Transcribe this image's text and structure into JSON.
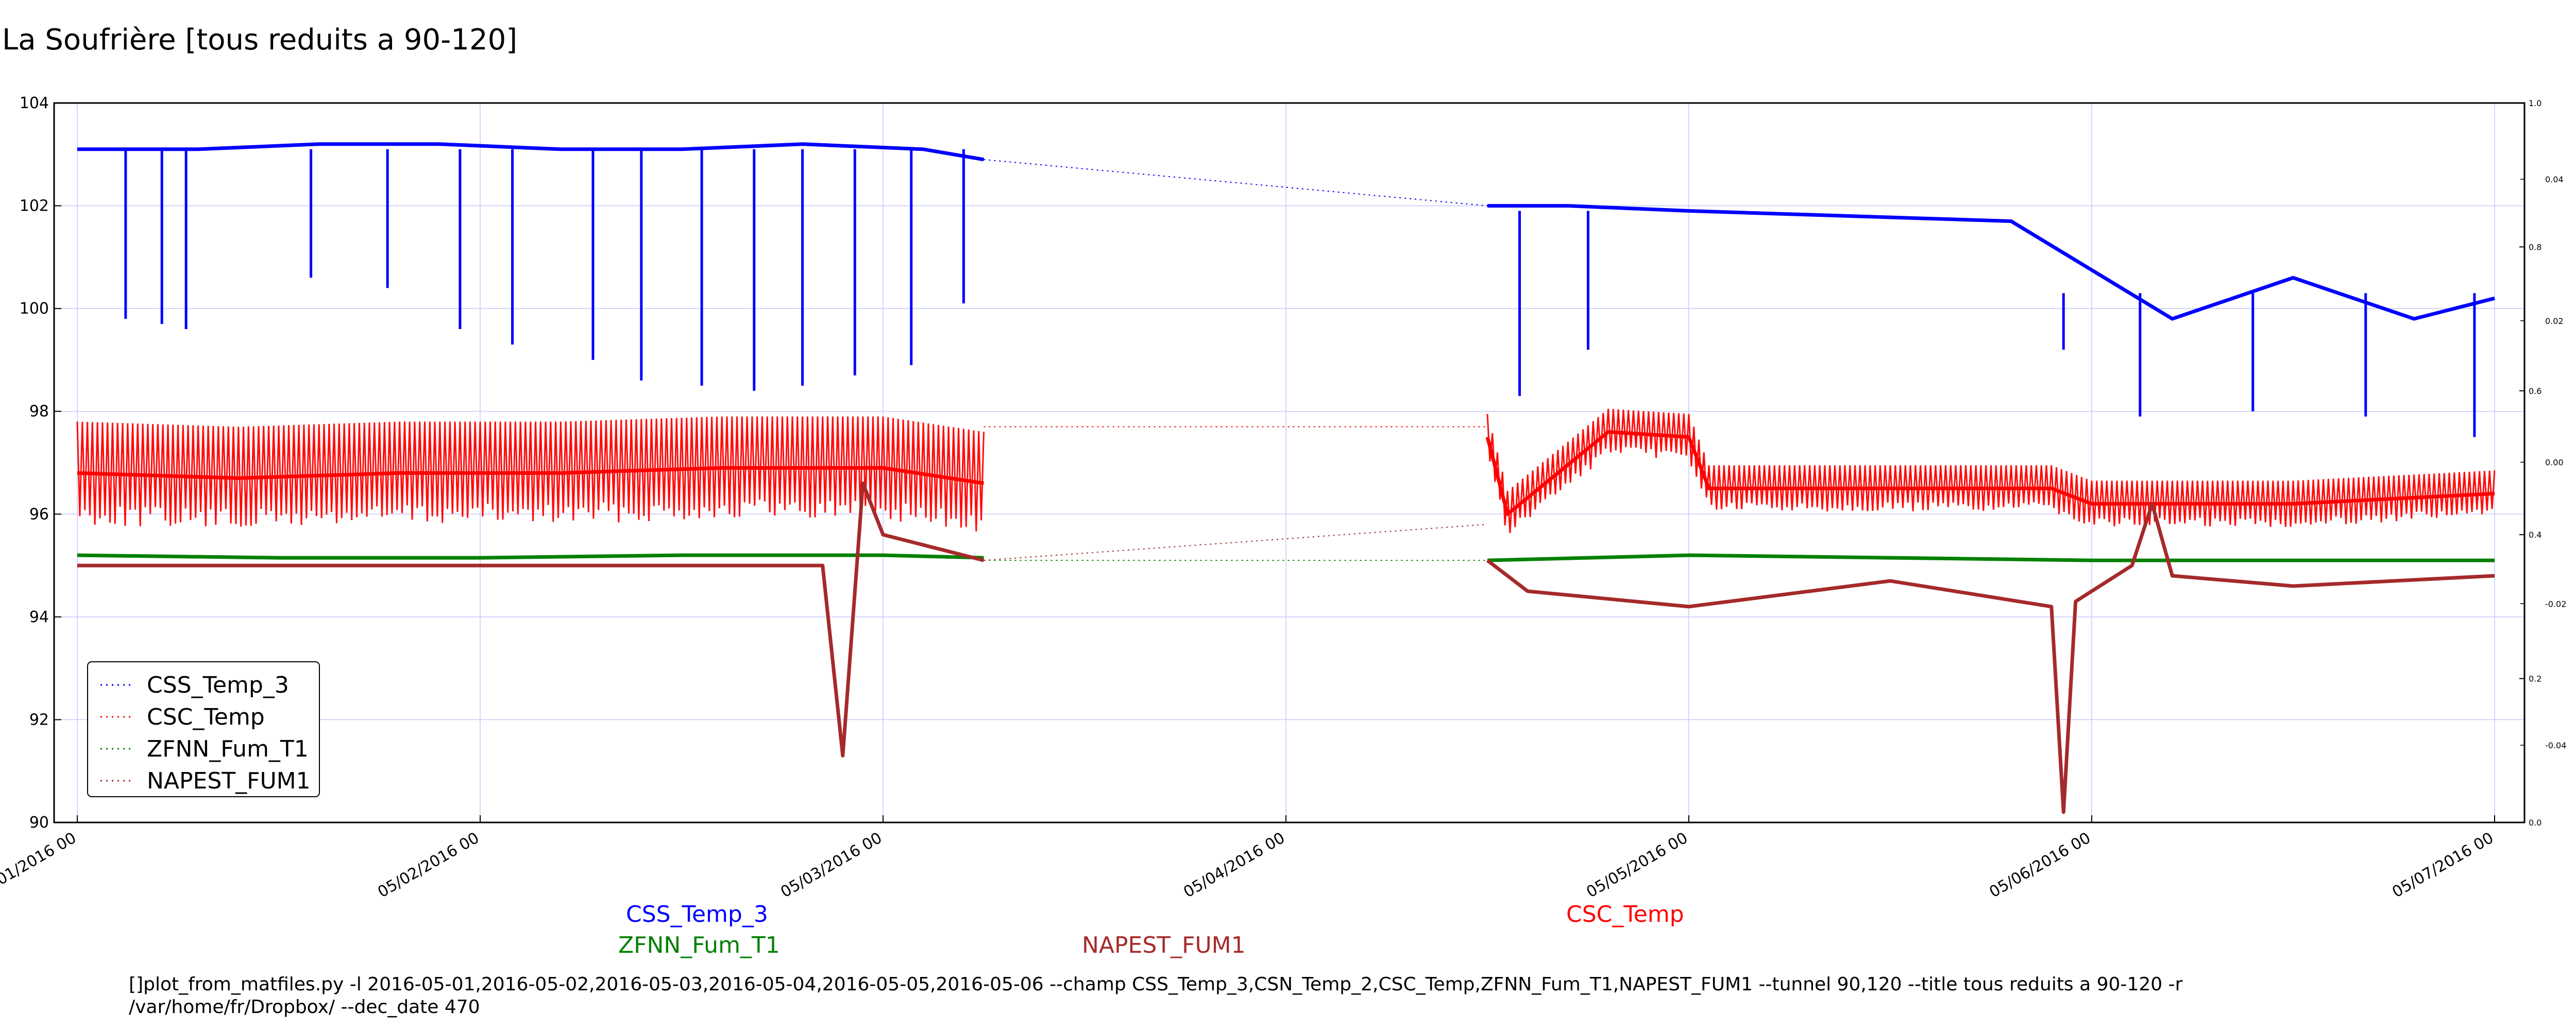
{
  "chart_data": {
    "type": "line",
    "title": "La Soufrière [tous reduits a 90-120]",
    "xlabel": "",
    "ylabel": "",
    "ylim": [
      90,
      104
    ],
    "yticks": [
      "90",
      "92",
      "94",
      "96",
      "98",
      "100",
      "102",
      "104"
    ],
    "xtick_labels": [
      "05/01/2016 00",
      "05/02/2016 00",
      "05/03/2016 00",
      "05/04/2016 00",
      "05/05/2016 00",
      "05/06/2016 00",
      "05/07/2016 00"
    ],
    "right_axis_outer": {
      "ylim": [
        0.0,
        1.0
      ],
      "ticks": [
        "0.0",
        "0.2",
        "0.4",
        "0.6",
        "0.8",
        "1.0"
      ]
    },
    "right_axis_inner": {
      "ticks": [
        "-0.04",
        "-0.02",
        "0.00",
        "0.02",
        "0.04"
      ]
    },
    "grid": true,
    "legend_position": "lower-left",
    "legend": [
      "CSS_Temp_3",
      "CSC_Temp",
      "ZFNN_Fum_T1",
      "NAPEST_FUM1"
    ],
    "series": [
      {
        "name": "CSS_Temp_3",
        "color": "#0000ff",
        "segments": [
          {
            "x": [
              0.0,
              0.3,
              0.6,
              0.9,
              1.2,
              1.5,
              1.8,
              2.1,
              2.25
            ],
            "y": [
              103.1,
              103.1,
              103.2,
              103.2,
              103.1,
              103.1,
              103.2,
              103.1,
              102.9
            ]
          },
          {
            "x": [
              3.5,
              3.7,
              4.0,
              4.4,
              4.8,
              5.2,
              5.5,
              5.8,
              6.0
            ],
            "y": [
              102.0,
              102.0,
              101.9,
              101.8,
              101.7,
              99.8,
              100.6,
              99.8,
              100.2
            ]
          }
        ],
        "bridge": {
          "x": [
            2.25,
            3.5
          ],
          "y": [
            102.9,
            102.0
          ]
        },
        "dips": [
          {
            "x": 0.12,
            "y": 99.8
          },
          {
            "x": 0.21,
            "y": 99.7
          },
          {
            "x": 0.27,
            "y": 99.6
          },
          {
            "x": 0.58,
            "y": 100.6
          },
          {
            "x": 0.77,
            "y": 100.4
          },
          {
            "x": 0.95,
            "y": 99.6
          },
          {
            "x": 1.08,
            "y": 99.3
          },
          {
            "x": 1.28,
            "y": 99.0
          },
          {
            "x": 1.4,
            "y": 98.6
          },
          {
            "x": 1.55,
            "y": 98.5
          },
          {
            "x": 1.68,
            "y": 98.4
          },
          {
            "x": 1.8,
            "y": 98.5
          },
          {
            "x": 1.93,
            "y": 98.7
          },
          {
            "x": 2.07,
            "y": 98.9
          },
          {
            "x": 2.2,
            "y": 100.1
          },
          {
            "x": 3.58,
            "y": 98.3
          },
          {
            "x": 3.75,
            "y": 99.2
          },
          {
            "x": 4.93,
            "y": 99.2
          },
          {
            "x": 5.12,
            "y": 97.9
          },
          {
            "x": 5.4,
            "y": 98.0
          },
          {
            "x": 5.68,
            "y": 97.9
          },
          {
            "x": 5.95,
            "y": 97.5
          }
        ]
      },
      {
        "name": "CSC_Temp",
        "color": "#ff0000",
        "segments": [
          {
            "x": [
              0.0,
              0.4,
              0.8,
              1.2,
              1.6,
              2.0,
              2.25
            ],
            "y": [
              96.8,
              96.7,
              96.8,
              96.8,
              96.9,
              96.9,
              96.6
            ]
          },
          {
            "x": [
              3.5,
              3.55,
              3.8,
              4.0,
              4.05,
              4.5,
              4.9,
              5.0,
              5.5,
              6.0
            ],
            "y": [
              97.5,
              96.0,
              97.6,
              97.5,
              96.5,
              96.5,
              96.5,
              96.2,
              96.2,
              96.4
            ]
          }
        ],
        "bridge": {
          "x": [
            2.25,
            3.5
          ],
          "y": [
            97.7,
            97.7
          ]
        }
      },
      {
        "name": "ZFNN_Fum_T1",
        "color": "#008000",
        "segments": [
          {
            "x": [
              0.0,
              0.5,
              1.0,
              1.5,
              2.0,
              2.25
            ],
            "y": [
              95.2,
              95.15,
              95.15,
              95.2,
              95.2,
              95.15
            ]
          },
          {
            "x": [
              3.5,
              4.0,
              4.5,
              5.0,
              5.5,
              6.0
            ],
            "y": [
              95.1,
              95.2,
              95.15,
              95.1,
              95.1,
              95.1
            ]
          }
        ],
        "bridge": {
          "x": [
            2.25,
            3.5
          ],
          "y": [
            95.1,
            95.1
          ]
        }
      },
      {
        "name": "NAPEST_FUM1",
        "color": "#a52a2a",
        "segments": [
          {
            "x": [
              0.0,
              0.5,
              1.0,
              1.5,
              1.85,
              1.9,
              1.95,
              2.0,
              2.1,
              2.25
            ],
            "y": [
              95.0,
              95.0,
              95.0,
              95.0,
              95.0,
              91.3,
              96.6,
              95.6,
              95.4,
              95.1
            ]
          },
          {
            "x": [
              3.5,
              3.6,
              4.0,
              4.5,
              4.9,
              4.93,
              4.96,
              5.1,
              5.15,
              5.2,
              5.5,
              6.0
            ],
            "y": [
              95.1,
              94.5,
              94.2,
              94.7,
              94.2,
              90.2,
              94.3,
              95.0,
              96.2,
              94.8,
              94.6,
              94.8
            ]
          }
        ],
        "bridge": {
          "x": [
            2.25,
            3.5
          ],
          "y": [
            95.1,
            95.8
          ]
        }
      }
    ]
  },
  "bottom_labels": {
    "col1_row1": "CSS_Temp_3",
    "col1_row2": "ZFNN_Fum_T1",
    "col2_row2": "NAPEST_FUM1",
    "col3_row1": "CSC_Temp"
  },
  "footer": {
    "command": "[]plot_from_matfiles.py -l 2016-05-01,2016-05-02,2016-05-03,2016-05-04,2016-05-05,2016-05-06 --champ CSS_Temp_3,CSN_Temp_2,CSC_Temp,ZFNN_Fum_T1,NAPEST_FUM1 --tunnel 90,120 --title tous reduits a 90-120 -r /var/home/fr/Dropbox/ --dec_date 470"
  }
}
